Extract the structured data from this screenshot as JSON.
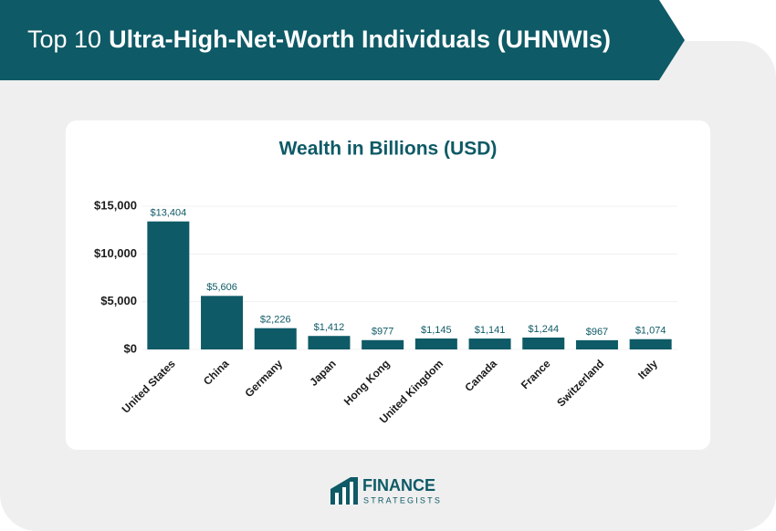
{
  "header": {
    "title_light": "Top 10",
    "title_bold": "Ultra-High-Net-Worth Individuals (UHNWIs)"
  },
  "chart_data": {
    "type": "bar",
    "title": "Wealth in Billions (USD)",
    "categories": [
      "United States",
      "China",
      "Germany",
      "Japan",
      "Hong Kong",
      "United Kingdom",
      "Canada",
      "France",
      "Switzerland",
      "Italy"
    ],
    "values": [
      13404,
      5606,
      2226,
      1412,
      977,
      1145,
      1141,
      1244,
      967,
      1074
    ],
    "value_labels": [
      "$13,404",
      "$5,606",
      "$2,226",
      "$1,412",
      "$977",
      "$1,145",
      "$1,141",
      "$1,244",
      "$967",
      "$1,074"
    ],
    "color": "#0e5a66",
    "ylim": [
      0,
      15000
    ],
    "yticks": [
      {
        "value": 0,
        "label": "$0"
      },
      {
        "value": 5000,
        "label": "$5,000"
      },
      {
        "value": 10000,
        "label": "$10,000"
      },
      {
        "value": 15000,
        "label": "$15,000"
      }
    ],
    "grid": true
  },
  "footer": {
    "brand": "FINANCE",
    "brand_sub": "STRATEGISTS"
  }
}
